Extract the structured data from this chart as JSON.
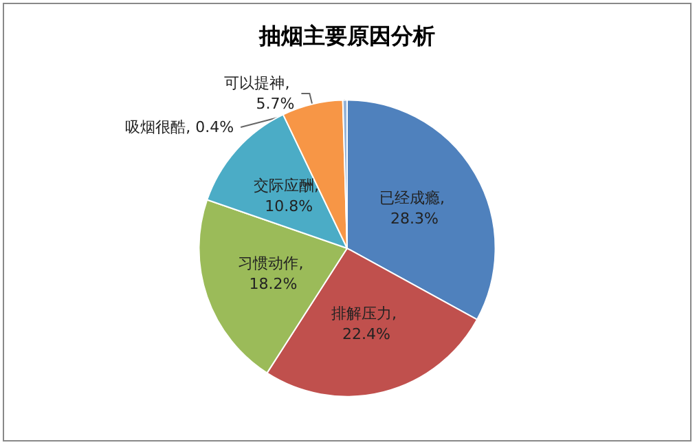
{
  "chart_data": {
    "type": "pie",
    "title": "抽烟主要原因分析",
    "categories": [
      "已经成瘾",
      "排解压力",
      "习惯动作",
      "交际应酬",
      "可以提神",
      "吸烟很酷"
    ],
    "values": [
      28.3,
      22.4,
      18.2,
      10.8,
      5.7,
      0.4
    ],
    "value_labels": [
      ", 28.3%",
      ", 22.4%",
      ", 18.2%",
      ", 10.8%",
      ", 5.7%",
      ", 0.4%"
    ],
    "colors": [
      "#4f81bd",
      "#c0504d",
      "#9bbb59",
      "#4bacc6",
      "#f79646",
      "#95b3d7"
    ],
    "legend": false
  }
}
